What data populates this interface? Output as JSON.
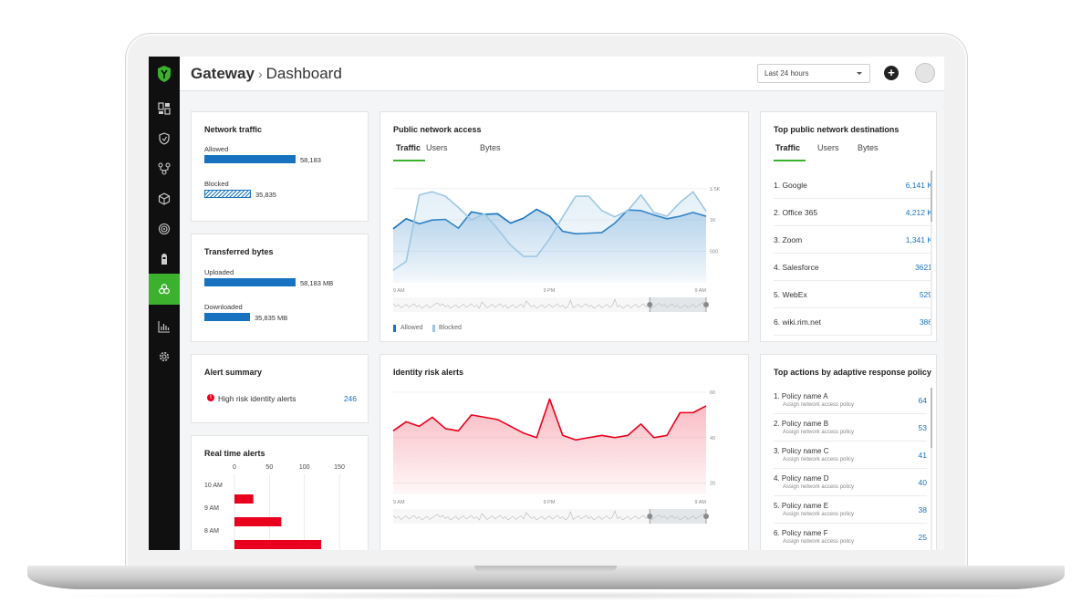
{
  "header": {
    "app_title": "Gateway",
    "separator": "›",
    "page_title": "Dashboard",
    "time_range": "Last 24 hours"
  },
  "sidebar": {
    "items": [
      {
        "icon": "dashboard-icon"
      },
      {
        "icon": "shield-icon"
      },
      {
        "icon": "network-icon"
      },
      {
        "icon": "cube-icon"
      },
      {
        "icon": "radar-icon"
      },
      {
        "icon": "identity-icon"
      },
      {
        "icon": "biohazard-icon",
        "active": true
      },
      {
        "icon": "reports-icon"
      },
      {
        "icon": "gear-icon"
      }
    ],
    "accent": "#3cb12e"
  },
  "network_traffic": {
    "title": "Network traffic",
    "allowed_label": "Allowed",
    "allowed_value": "58,183",
    "blocked_label": "Blocked",
    "blocked_value": "35,835",
    "allowed_fraction": 1.0,
    "blocked_fraction": 0.51
  },
  "transferred_bytes": {
    "title": "Transferred bytes",
    "uploaded_label": "Uploaded",
    "uploaded_value": "58,183 MB",
    "downloaded_label": "Downloaded",
    "downloaded_value": "35,835 MB",
    "uploaded_fraction": 1.0,
    "downloaded_fraction": 0.5
  },
  "alert_summary": {
    "title": "Alert summary",
    "item_label": "High risk identity alerts",
    "item_value": "246"
  },
  "realtime_alerts": {
    "title": "Real time alerts",
    "x_ticks": [
      "0",
      "50",
      "100",
      "150"
    ],
    "y_labels": [
      "10 AM",
      "9 AM",
      "8 AM"
    ]
  },
  "public_network_access": {
    "title": "Public network access",
    "tabs": [
      "Traffic",
      "Users",
      "Bytes"
    ],
    "y_ticks": [
      "1.5K",
      "1K",
      "500"
    ],
    "x_ticks": [
      "9 AM",
      "9 PM",
      "9 AM"
    ],
    "legend_allowed": "Allowed",
    "legend_blocked": "Blocked"
  },
  "identity_risk": {
    "title": "Identity risk alerts",
    "y_ticks": [
      "60",
      "40",
      "20"
    ],
    "x_ticks": [
      "9 AM",
      "9 PM",
      "9 AM"
    ]
  },
  "top_destinations": {
    "title": "Top public network destinations",
    "tabs": [
      "Traffic",
      "Users",
      "Bytes"
    ],
    "rows": [
      {
        "name": "1. Google",
        "value": "6,141 K"
      },
      {
        "name": "2. Office 365",
        "value": "4,212 K"
      },
      {
        "name": "3. Zoom",
        "value": "1,341 K"
      },
      {
        "name": "4. Salesforce",
        "value": "3621"
      },
      {
        "name": "5. WebEx",
        "value": "529"
      },
      {
        "name": "6. wiki.rim.net",
        "value": "386"
      }
    ]
  },
  "top_actions": {
    "title": "Top actions by adaptive response policy",
    "rows": [
      {
        "name": "1. Policy name A",
        "desc": "Assign network access policy",
        "value": "64"
      },
      {
        "name": "2. Policy name B",
        "desc": "Assign network access policy",
        "value": "53"
      },
      {
        "name": "3. Policy name C",
        "desc": "Assign network access policy",
        "value": "41"
      },
      {
        "name": "4. Policy name D",
        "desc": "Assign network access policy",
        "value": "40"
      },
      {
        "name": "5. Policy name E",
        "desc": "Assign network access policy",
        "value": "38"
      },
      {
        "name": "6. Policy name F",
        "desc": "Assign network access policy",
        "value": "25"
      }
    ]
  },
  "chart_data": [
    {
      "type": "area",
      "title": "Public network access",
      "x": [
        0,
        1,
        2,
        3,
        4,
        5,
        6,
        7,
        8,
        9,
        10,
        11,
        12,
        13,
        14,
        15,
        16,
        17,
        18,
        19,
        20,
        21,
        22,
        23,
        24
      ],
      "series": [
        {
          "name": "Allowed",
          "color": "#1773c0",
          "values": [
            860,
            1020,
            940,
            1000,
            1010,
            870,
            1130,
            1090,
            1100,
            950,
            1030,
            1170,
            1060,
            820,
            780,
            790,
            800,
            950,
            1160,
            1150,
            1080,
            1020,
            1060,
            1120,
            1060
          ]
        },
        {
          "name": "Blocked",
          "color": "#9cc7e4",
          "values": [
            200,
            340,
            1400,
            1450,
            1380,
            1200,
            1000,
            1100,
            860,
            600,
            420,
            420,
            700,
            1050,
            1380,
            1380,
            1150,
            1050,
            1150,
            1400,
            1120,
            1060,
            1280,
            1450,
            1140
          ]
        }
      ],
      "ylim": [
        0,
        1700
      ]
    },
    {
      "type": "area",
      "title": "Identity risk alerts",
      "x": [
        0,
        1,
        2,
        3,
        4,
        5,
        6,
        7,
        8,
        9,
        10,
        11,
        12,
        13,
        14,
        15,
        16,
        17,
        18,
        19,
        20,
        21,
        22,
        23,
        24
      ],
      "series": [
        {
          "name": "",
          "color": "#e8001c",
          "values": [
            43,
            47,
            45,
            49,
            44,
            43,
            50,
            49,
            48,
            45,
            42,
            40,
            57,
            41,
            39,
            40,
            41,
            40,
            41,
            46,
            40,
            41,
            51,
            51,
            54
          ]
        }
      ],
      "ylim": [
        15,
        62
      ]
    },
    {
      "type": "bar",
      "title": "Real time alerts",
      "categories": [
        "10 AM",
        "9 AM",
        "8 AM"
      ],
      "values": [
        27,
        67,
        124
      ],
      "xlim": [
        0,
        150
      ],
      "color": "#e8001c"
    }
  ]
}
